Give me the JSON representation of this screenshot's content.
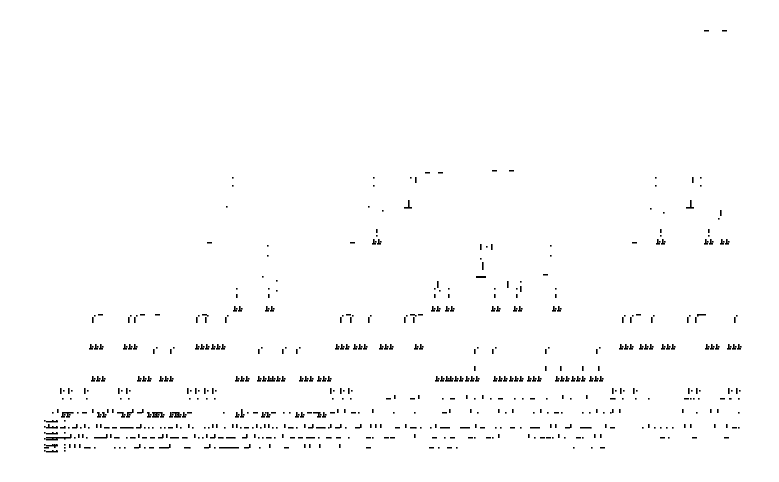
{
  "figure": {
    "kind": "black-and-white glyph pattern",
    "background_color": "#ffffff",
    "ink_color": "#000000",
    "visible_text": []
  }
}
